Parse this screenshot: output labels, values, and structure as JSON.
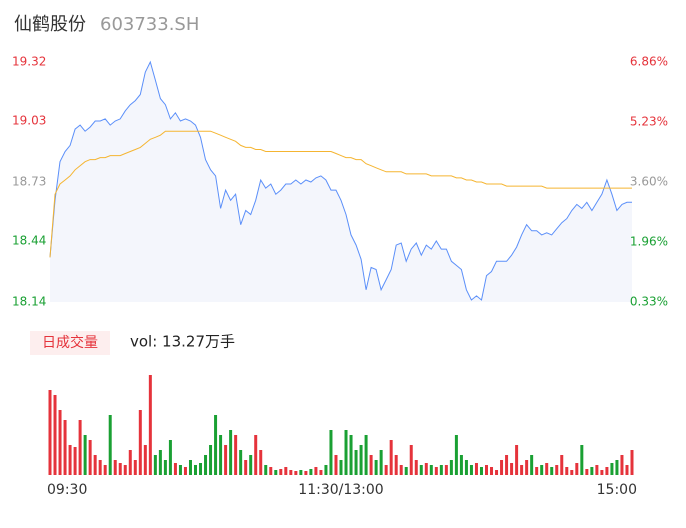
{
  "header": {
    "name": "仙鹤股份",
    "code": "603733.SH"
  },
  "chart_data": [
    {
      "type": "line",
      "xticks": [
        {
          "value": 0,
          "label": "09:30"
        },
        {
          "value": 58,
          "label": "11:30/13:00"
        },
        {
          "value": 116,
          "label": "15:00"
        }
      ],
      "xlim": [
        0,
        116
      ],
      "ylim": [
        18.14,
        19.32
      ],
      "yticks": [
        18.14,
        18.44,
        18.73,
        19.03,
        19.32
      ],
      "ytick_colors": [
        "#1aa033",
        "#1aa033",
        "#999999",
        "#e5333b",
        "#e5333b"
      ],
      "y2lim": [
        0.33,
        6.86
      ],
      "y2ticks": [
        {
          "value": 0.33,
          "label": "0.33%"
        },
        {
          "value": 1.96,
          "label": "1.96%"
        },
        {
          "value": 3.6,
          "label": "3.60%"
        },
        {
          "value": 5.23,
          "label": "5.23%"
        },
        {
          "value": 6.86,
          "label": "6.86%"
        }
      ],
      "series": [
        {
          "color": "#5b8ff9",
          "area": "#f4f6fc",
          "values": [
            18.36,
            18.64,
            18.83,
            18.88,
            18.91,
            18.99,
            19.01,
            18.98,
            19.0,
            19.03,
            19.03,
            19.04,
            19.01,
            19.03,
            19.04,
            19.08,
            19.11,
            19.13,
            19.16,
            19.27,
            19.32,
            19.23,
            19.14,
            19.11,
            19.04,
            19.07,
            19.03,
            19.04,
            19.03,
            19.01,
            18.95,
            18.84,
            18.79,
            18.76,
            18.6,
            18.69,
            18.64,
            18.67,
            18.52,
            18.59,
            18.57,
            18.64,
            18.74,
            18.7,
            18.72,
            18.67,
            18.69,
            18.72,
            18.72,
            18.74,
            18.72,
            18.74,
            18.73,
            18.75,
            18.76,
            18.74,
            18.69,
            18.69,
            18.64,
            18.57,
            18.47,
            18.42,
            18.35,
            18.2,
            18.31,
            18.3,
            18.2,
            18.25,
            18.3,
            18.42,
            18.43,
            18.34,
            18.4,
            18.43,
            18.37,
            18.42,
            18.4,
            18.44,
            18.4,
            18.4,
            18.34,
            18.32,
            18.3,
            18.2,
            18.15,
            18.17,
            18.15,
            18.27,
            18.29,
            18.34,
            18.34,
            18.34,
            18.37,
            18.41,
            18.47,
            18.52,
            18.49,
            18.49,
            18.47,
            18.48,
            18.47,
            18.5,
            18.53,
            18.55,
            18.59,
            18.62,
            18.6,
            18.63,
            18.59,
            18.63,
            18.67,
            18.74,
            18.67,
            18.59,
            18.62,
            18.63,
            18.63
          ]
        },
        {
          "color": "#f5b531",
          "values": [
            18.36,
            18.67,
            18.72,
            18.74,
            18.76,
            18.79,
            18.81,
            18.83,
            18.84,
            18.84,
            18.85,
            18.85,
            18.86,
            18.86,
            18.86,
            18.87,
            18.88,
            18.89,
            18.9,
            18.92,
            18.94,
            18.95,
            18.96,
            18.98,
            18.98,
            18.98,
            18.98,
            18.98,
            18.98,
            18.98,
            18.98,
            18.98,
            18.98,
            18.97,
            18.96,
            18.95,
            18.94,
            18.93,
            18.91,
            18.9,
            18.9,
            18.89,
            18.89,
            18.88,
            18.88,
            18.88,
            18.88,
            18.88,
            18.88,
            18.88,
            18.88,
            18.88,
            18.88,
            18.88,
            18.88,
            18.88,
            18.88,
            18.87,
            18.86,
            18.85,
            18.85,
            18.84,
            18.84,
            18.82,
            18.81,
            18.8,
            18.79,
            18.78,
            18.78,
            18.78,
            18.78,
            18.77,
            18.77,
            18.77,
            18.77,
            18.77,
            18.76,
            18.76,
            18.76,
            18.76,
            18.76,
            18.75,
            18.75,
            18.74,
            18.74,
            18.73,
            18.73,
            18.72,
            18.72,
            18.72,
            18.72,
            18.71,
            18.71,
            18.71,
            18.71,
            18.71,
            18.71,
            18.71,
            18.71,
            18.7,
            18.7,
            18.7,
            18.7,
            18.7,
            18.7,
            18.7,
            18.7,
            18.7,
            18.7,
            18.7,
            18.7,
            18.7,
            18.7,
            18.7,
            18.7,
            18.7,
            18.7
          ]
        }
      ]
    },
    {
      "type": "volume",
      "button": "日成交量",
      "label": "vol: 13.27万手",
      "up_color": "#e5333b",
      "down_color": "#1aa033",
      "values": [
        3400,
        3200,
        2600,
        2200,
        1200,
        1120,
        2200,
        1600,
        1400,
        800,
        600,
        400,
        2400,
        600,
        480,
        400,
        1000,
        600,
        2600,
        1200,
        4000,
        800,
        1000,
        600,
        1400,
        480,
        400,
        320,
        600,
        400,
        480,
        800,
        1200,
        2400,
        1600,
        1200,
        1800,
        1600,
        1000,
        600,
        800,
        1600,
        1000,
        400,
        320,
        200,
        240,
        320,
        200,
        160,
        200,
        160,
        240,
        320,
        200,
        400,
        1800,
        800,
        600,
        1800,
        1600,
        1000,
        1200,
        1600,
        800,
        600,
        1000,
        400,
        1400,
        800,
        400,
        320,
        1200,
        600,
        400,
        480,
        400,
        320,
        400,
        400,
        600,
        1600,
        800,
        600,
        400,
        480,
        320,
        400,
        320,
        200,
        600,
        800,
        480,
        1200,
        400,
        600,
        800,
        320,
        400,
        480,
        320,
        400,
        800,
        320,
        200,
        480,
        1200,
        240,
        320,
        400,
        200,
        320,
        480,
        600,
        800,
        400,
        1000
      ]
    }
  ]
}
